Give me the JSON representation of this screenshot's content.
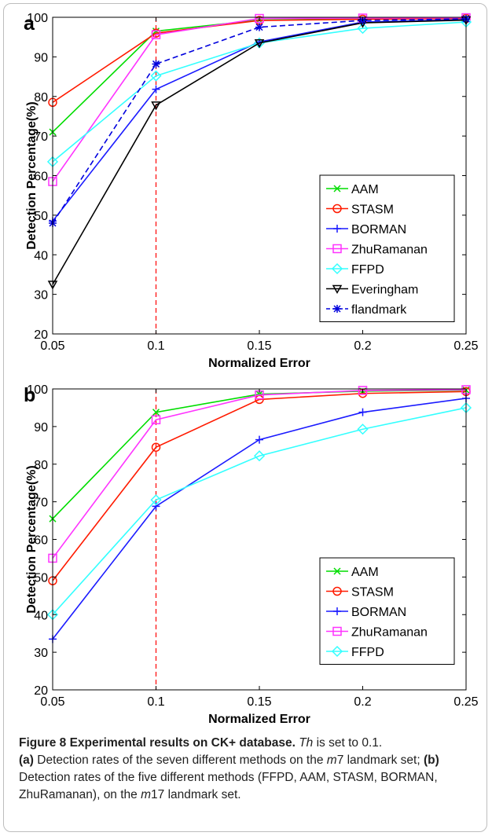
{
  "chart_data": [
    {
      "type": "line",
      "panel_label": "a",
      "xlabel": "Normalized Error",
      "ylabel": "Detection Percentage(%)",
      "x": [
        0.05,
        0.1,
        0.15,
        0.2,
        0.25
      ],
      "xticks": [
        "0.05",
        "0.1",
        "0.15",
        "0.2",
        "0.25"
      ],
      "yticks": [
        "20",
        "30",
        "40",
        "50",
        "60",
        "70",
        "80",
        "90",
        "100"
      ],
      "xlim": [
        0.05,
        0.25
      ],
      "ylim": [
        20,
        100
      ],
      "reference_line_x": 0.1,
      "legend_position": "lower-right",
      "series": [
        {
          "name": "AAM",
          "color": "#00dd00",
          "marker": "x",
          "dash": "solid",
          "values": [
            71,
            96.5,
            99.3,
            99.6,
            99.8
          ]
        },
        {
          "name": "STASM",
          "color": "#ff1a00",
          "marker": "circle",
          "dash": "solid",
          "values": [
            78.5,
            96,
            99.2,
            99.5,
            99.7
          ]
        },
        {
          "name": "BORMAN",
          "color": "#1a1aff",
          "marker": "plus",
          "dash": "solid",
          "values": [
            48.5,
            81.8,
            93.8,
            98.8,
            99.4
          ]
        },
        {
          "name": "ZhuRamanan",
          "color": "#ff33ff",
          "marker": "square",
          "dash": "solid",
          "values": [
            58.5,
            95.6,
            99.7,
            99.8,
            99.9
          ]
        },
        {
          "name": "FFPD",
          "color": "#33ffff",
          "marker": "diamond",
          "dash": "solid",
          "values": [
            63.5,
            85.2,
            93.5,
            97.2,
            98.8
          ]
        },
        {
          "name": "Everingham",
          "color": "#000000",
          "marker": "triangle-down",
          "dash": "solid",
          "values": [
            32.5,
            77.8,
            93.5,
            98.6,
            99.3
          ]
        },
        {
          "name": "flandmark",
          "color": "#0000dd",
          "marker": "star",
          "dash": "dashed",
          "values": [
            48,
            88.2,
            97.5,
            99.2,
            99.6
          ]
        }
      ]
    },
    {
      "type": "line",
      "panel_label": "b",
      "xlabel": "Normalized Error",
      "ylabel": "Detection Percentage(%)",
      "x": [
        0.05,
        0.1,
        0.15,
        0.2,
        0.25
      ],
      "xticks": [
        "0.05",
        "0.1",
        "0.15",
        "0.2",
        "0.25"
      ],
      "yticks": [
        "20",
        "30",
        "40",
        "50",
        "60",
        "70",
        "80",
        "90",
        "100"
      ],
      "xlim": [
        0.05,
        0.25
      ],
      "ylim": [
        20,
        100
      ],
      "reference_line_x": 0.1,
      "legend_position": "lower-right",
      "series": [
        {
          "name": "AAM",
          "color": "#00dd00",
          "marker": "x",
          "dash": "solid",
          "values": [
            65.5,
            93.8,
            98.6,
            99.4,
            99.7
          ]
        },
        {
          "name": "STASM",
          "color": "#ff1a00",
          "marker": "circle",
          "dash": "solid",
          "values": [
            49,
            84.5,
            97.2,
            98.8,
            99.3
          ]
        },
        {
          "name": "BORMAN",
          "color": "#1a1aff",
          "marker": "plus",
          "dash": "solid",
          "values": [
            33.5,
            68.8,
            86.5,
            93.8,
            97.5
          ]
        },
        {
          "name": "ZhuRamanan",
          "color": "#ff33ff",
          "marker": "square",
          "dash": "solid",
          "values": [
            55,
            91.8,
            98.4,
            99.6,
            99.8
          ]
        },
        {
          "name": "FFPD",
          "color": "#33ffff",
          "marker": "diamond",
          "dash": "solid",
          "values": [
            40,
            70.5,
            82.2,
            89.3,
            95
          ]
        }
      ]
    }
  ],
  "caption": {
    "title": "Figure 8 Experimental results on CK+ database.",
    "th": "Th",
    "th_rest": " is set to 0.1.",
    "a_label": "(a)",
    "a_text_1": " Detection rates of the seven different methods on the ",
    "a_m": "m",
    "a_text_2": "7 landmark set; ",
    "b_label": "(b)",
    "b_text_1": " Detection rates of the five different methods (FFPD, AAM, STASM, BORMAN, ZhuRamanan), on the ",
    "b_m": "m",
    "b_text_2": "17 landmark set."
  }
}
